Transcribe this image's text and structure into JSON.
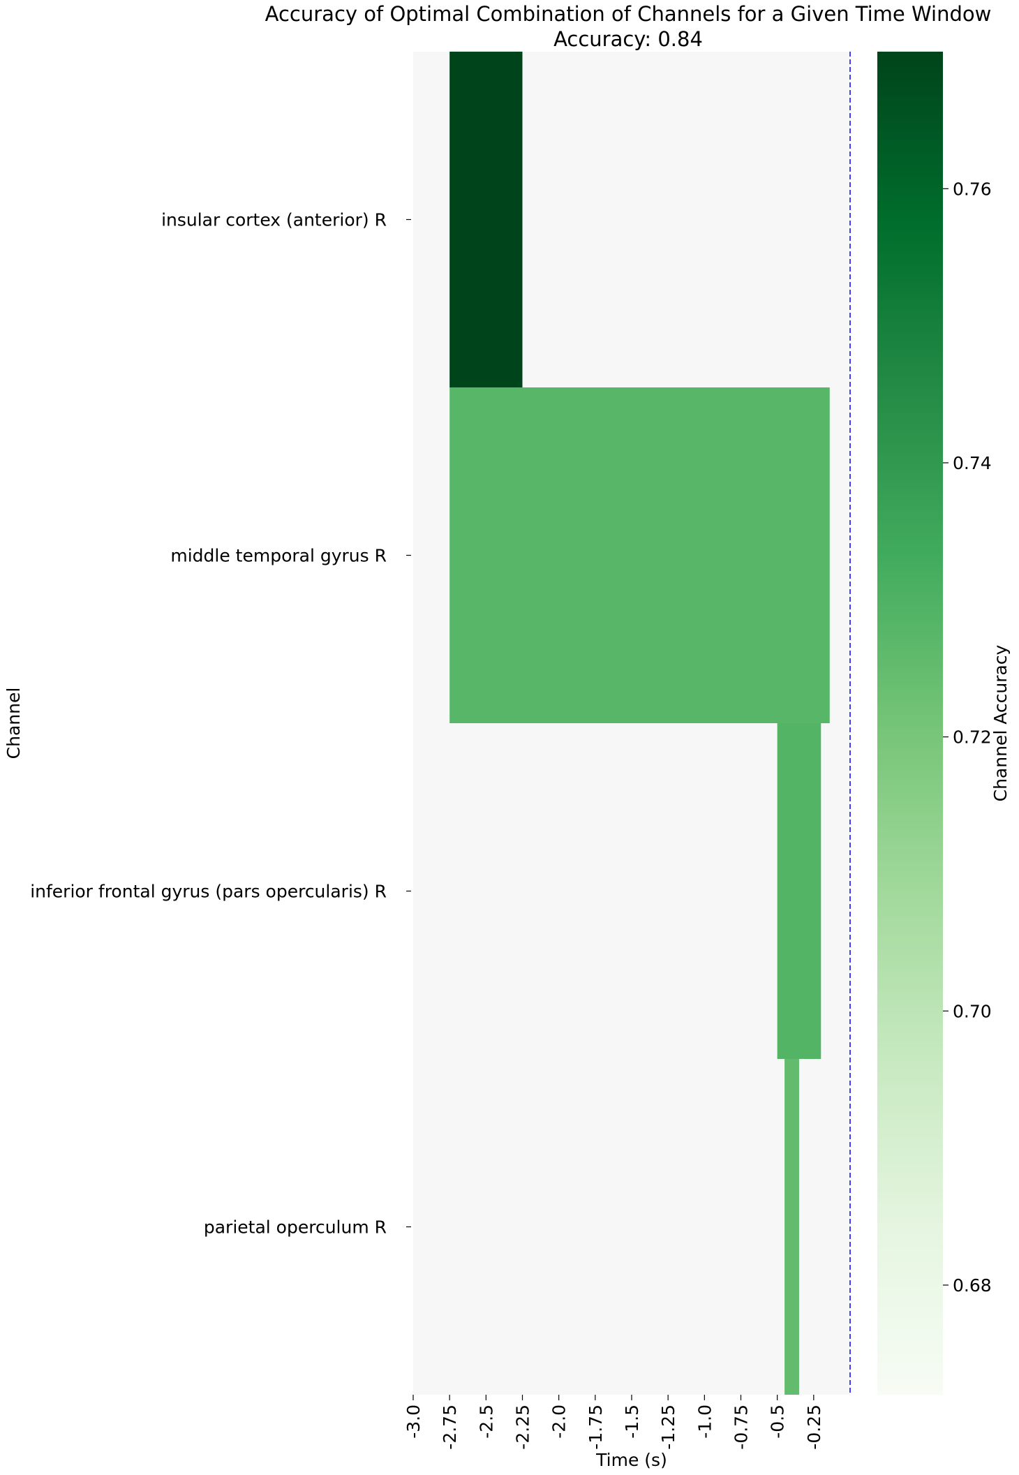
{
  "chart_data": {
    "type": "heatmap",
    "title": "Accuracy of Optimal Combination of Channels for a Given Time Window",
    "subtitle": "Accuracy: 0.84",
    "xlabel": "Time (s)",
    "ylabel": "Channel",
    "colorbar_label": "Channel Accuracy",
    "colormap": "Greens",
    "background_color": "#f7f7f7",
    "xlim": [
      -3.0,
      0.0
    ],
    "x_ticks": [
      -3.0,
      -2.75,
      -2.5,
      -2.25,
      -2.0,
      -1.75,
      -1.5,
      -1.25,
      -1.0,
      -0.75,
      -0.5,
      -0.25
    ],
    "x_tick_labels": [
      "-3.0",
      "-2.75",
      "-2.5",
      "-2.25",
      "-2.0",
      "-1.75",
      "-1.5",
      "-1.25",
      "-1.0",
      "-0.75",
      "-0.5",
      "-0.25"
    ],
    "channels": [
      "insular cortex (anterior) R",
      "middle temporal gyrus R",
      "inferior frontal gyrus (pars opercularis) R",
      "parietal operculum R"
    ],
    "cells": [
      {
        "channel": 0,
        "x_start": -2.75,
        "x_end": -2.25,
        "value": 0.77
      },
      {
        "channel": 1,
        "x_start": -2.75,
        "x_end": -0.14,
        "value": 0.728
      },
      {
        "channel": 2,
        "x_start": -0.5,
        "x_end": -0.2,
        "value": 0.729
      },
      {
        "channel": 3,
        "x_start": -0.45,
        "x_end": -0.35,
        "value": 0.725
      }
    ],
    "vline": {
      "x": 0.0,
      "color": "#0000ff",
      "style": "dashed"
    },
    "colorbar": {
      "vmin": 0.672,
      "vmax": 0.77,
      "ticks": [
        0.68,
        0.7,
        0.72,
        0.74,
        0.76
      ],
      "tick_labels": [
        "0.68",
        "0.70",
        "0.72",
        "0.74",
        "0.76"
      ]
    },
    "grid": false
  }
}
